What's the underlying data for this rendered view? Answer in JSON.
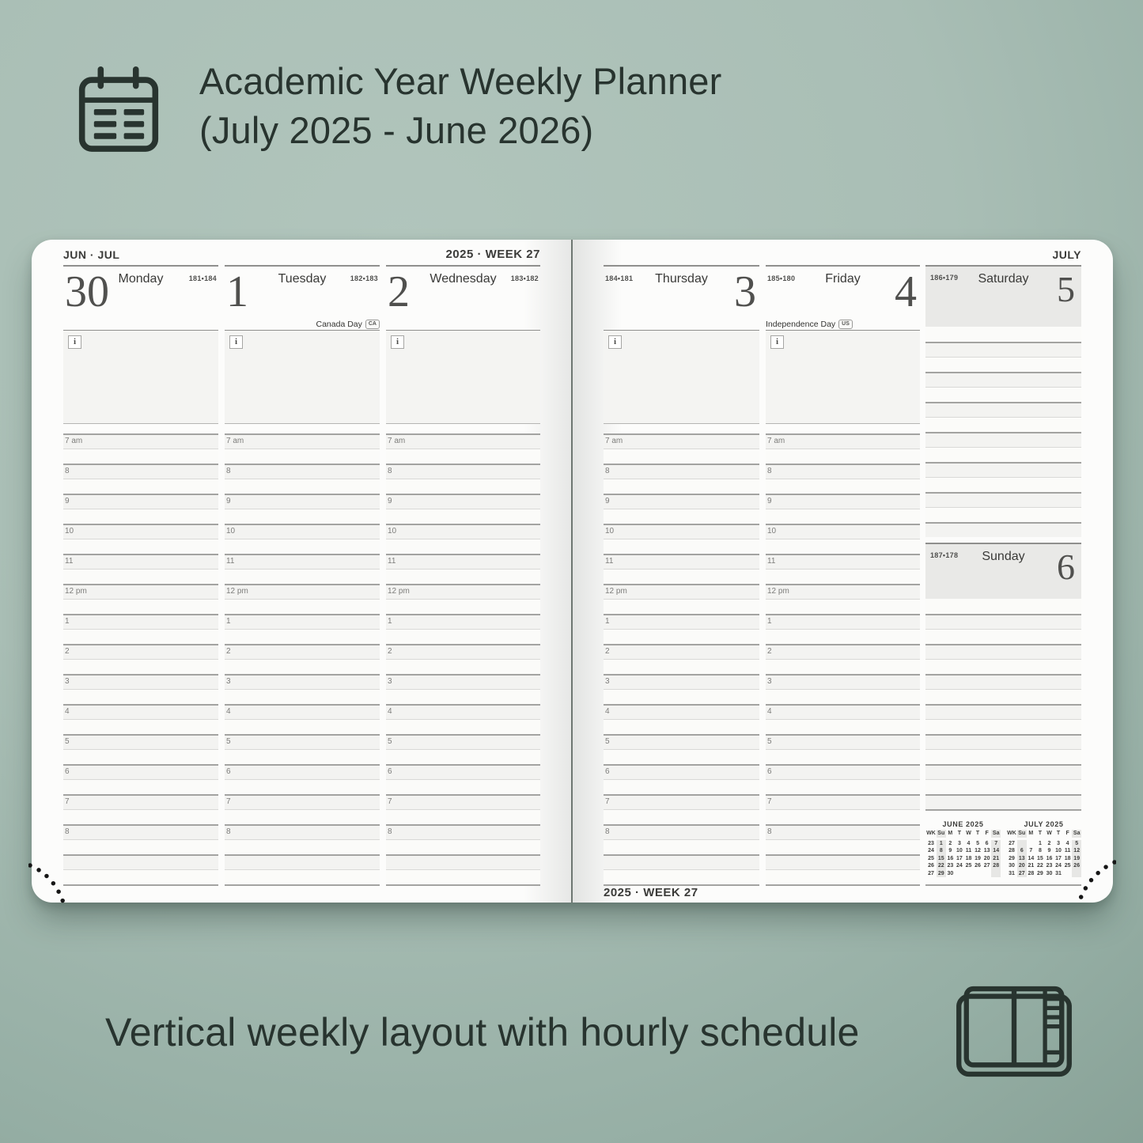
{
  "colors": {
    "background": "#a9beb5",
    "ink": "#28342f",
    "card": "#fcfcfb",
    "weekend_header": "#e9e9e7",
    "notes_background": "#f4f4f2"
  },
  "header": {
    "icon": "calendar-planner-icon",
    "title_line1": "Academic Year Weekly Planner",
    "title_line2": "(July 2025 - June 2026)"
  },
  "footer": {
    "icon": "open-notebook-icon",
    "caption": "Vertical weekly layout with hourly schedule"
  },
  "planner": {
    "info_icon": "i",
    "hours": [
      "7 am",
      "8",
      "9",
      "10",
      "11",
      "12 pm",
      "1",
      "2",
      "3",
      "4",
      "5",
      "6",
      "7",
      "8"
    ],
    "left_page": {
      "corner_label": "JUN · JUL",
      "week_label": "2025 · WEEK 27",
      "days": [
        {
          "number": "30",
          "name": "Monday",
          "pages": "181•184",
          "holiday": "",
          "holiday_badge": ""
        },
        {
          "number": "1",
          "name": "Tuesday",
          "pages": "182•183",
          "holiday": "Canada Day",
          "holiday_badge": "CA"
        },
        {
          "number": "2",
          "name": "Wednesday",
          "pages": "183•182",
          "holiday": "",
          "holiday_badge": ""
        }
      ]
    },
    "right_page": {
      "corner_label": "JULY",
      "week_label_bottom": "2025 · WEEK 27",
      "days": [
        {
          "number": "3",
          "name": "Thursday",
          "pages": "184•181",
          "holiday": "",
          "holiday_badge": ""
        },
        {
          "number": "4",
          "name": "Friday",
          "pages": "185•180",
          "holiday": "Independence Day",
          "holiday_badge": "US"
        }
      ],
      "weekend_days": [
        {
          "number": "5",
          "name": "Saturday",
          "pages": "186•179"
        },
        {
          "number": "6",
          "name": "Sunday",
          "pages": "187•178"
        }
      ]
    },
    "mini_calendars": [
      {
        "title": "JUNE 2025",
        "cols": [
          "WK",
          "Su",
          "M",
          "T",
          "W",
          "T",
          "F",
          "Sa"
        ],
        "rows": [
          [
            "23",
            "1",
            "2",
            "3",
            "4",
            "5",
            "6",
            "7"
          ],
          [
            "24",
            "8",
            "9",
            "10",
            "11",
            "12",
            "13",
            "14"
          ],
          [
            "25",
            "15",
            "16",
            "17",
            "18",
            "19",
            "20",
            "21"
          ],
          [
            "26",
            "22",
            "23",
            "24",
            "25",
            "26",
            "27",
            "28"
          ],
          [
            "27",
            "29",
            "30",
            "",
            "",
            "",
            "",
            ""
          ]
        ]
      },
      {
        "title": "JULY 2025",
        "cols": [
          "WK",
          "Su",
          "M",
          "T",
          "W",
          "T",
          "F",
          "Sa"
        ],
        "rows": [
          [
            "27",
            "",
            "",
            "1",
            "2",
            "3",
            "4",
            "5"
          ],
          [
            "28",
            "6",
            "7",
            "8",
            "9",
            "10",
            "11",
            "12"
          ],
          [
            "29",
            "13",
            "14",
            "15",
            "16",
            "17",
            "18",
            "19"
          ],
          [
            "30",
            "20",
            "21",
            "22",
            "23",
            "24",
            "25",
            "26"
          ],
          [
            "31",
            "27",
            "28",
            "29",
            "30",
            "31",
            "",
            ""
          ]
        ]
      }
    ]
  }
}
